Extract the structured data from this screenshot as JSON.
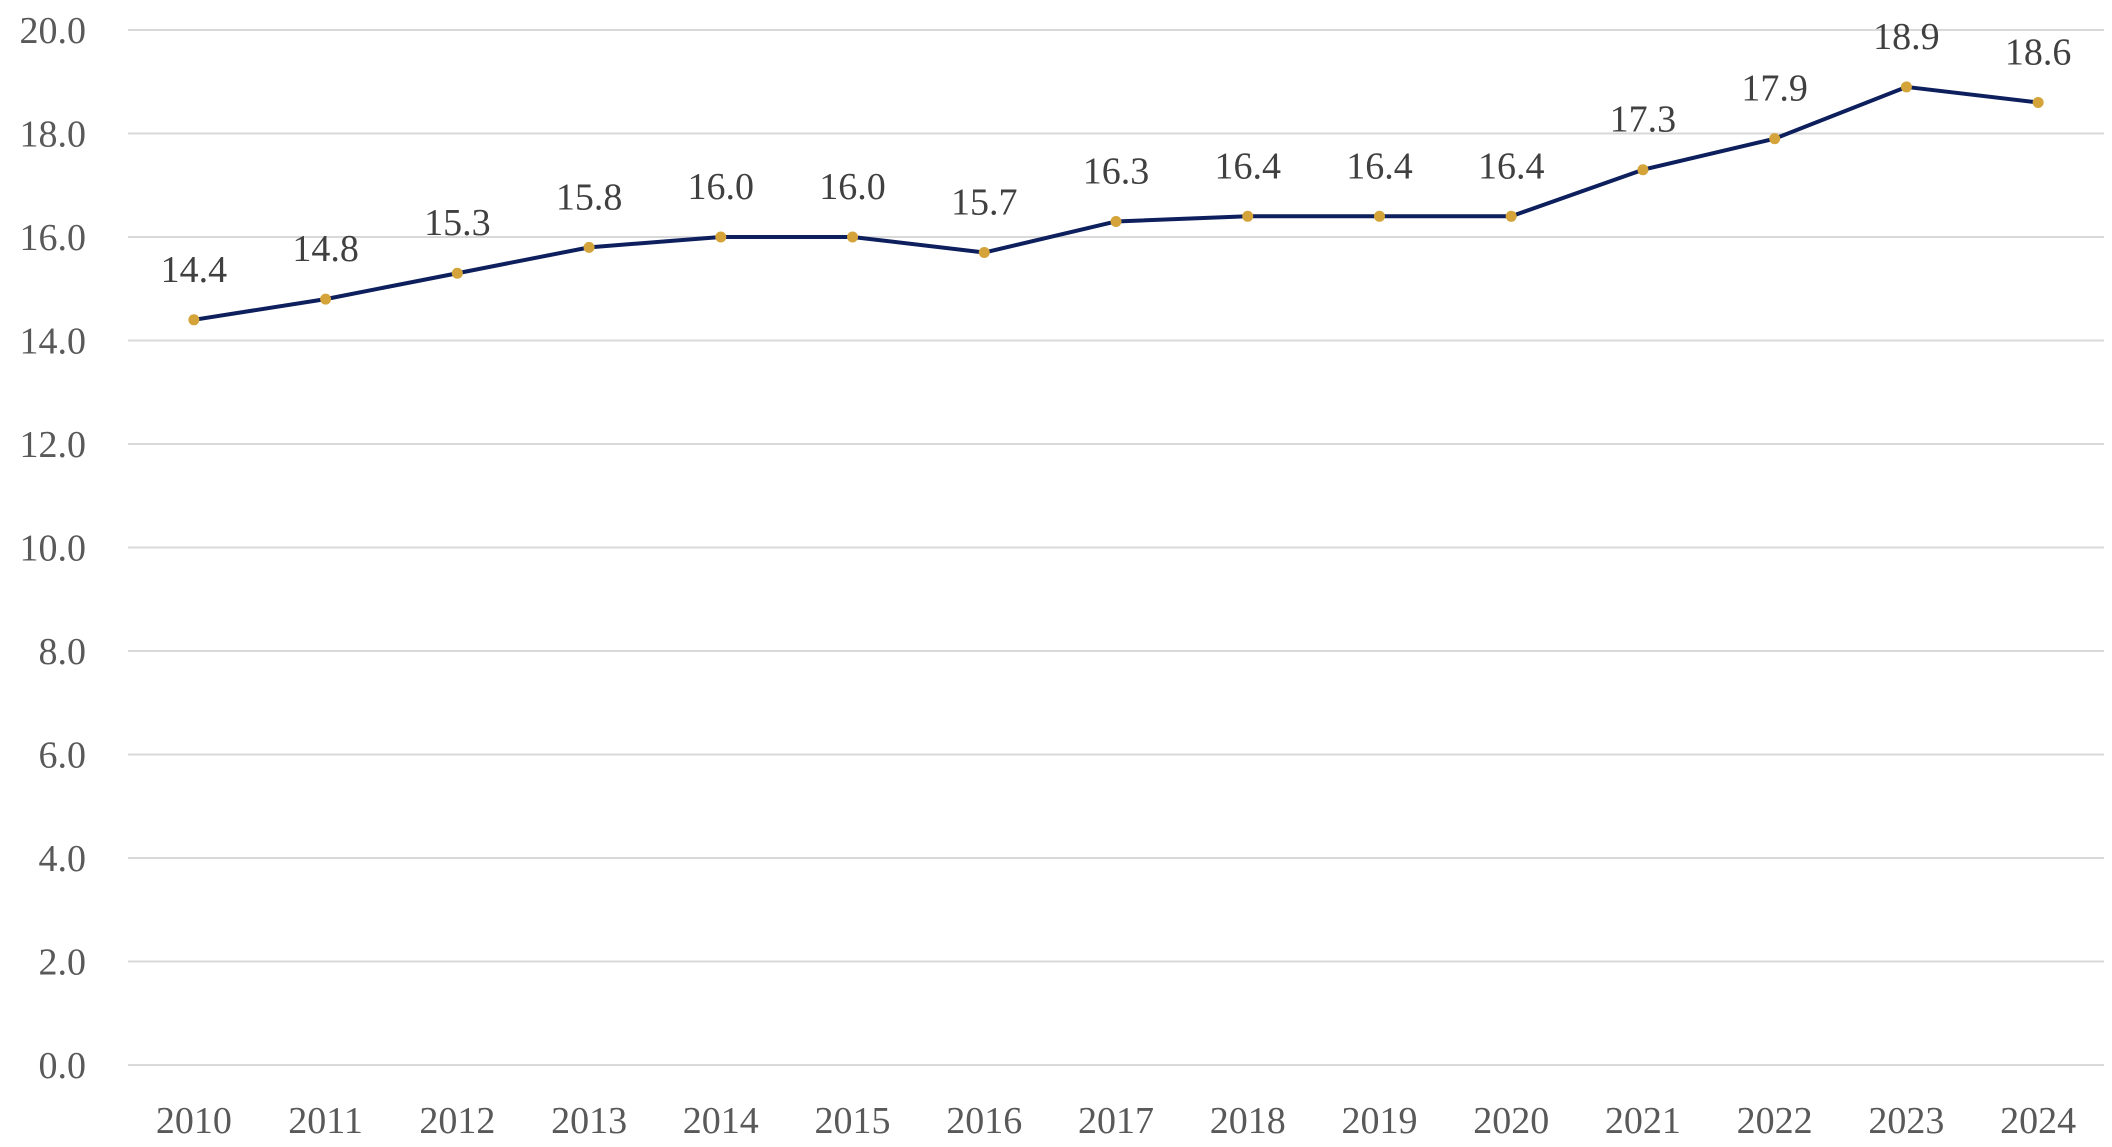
{
  "chart_data": {
    "type": "line",
    "title": "",
    "xlabel": "",
    "ylabel": "",
    "categories": [
      "2010",
      "2011",
      "2012",
      "2013",
      "2014",
      "2015",
      "2016",
      "2017",
      "2018",
      "2019",
      "2020",
      "2021",
      "2022",
      "2023",
      "2024"
    ],
    "series": [
      {
        "values": [
          14.4,
          14.8,
          15.3,
          15.8,
          16.0,
          16.0,
          15.7,
          16.3,
          16.4,
          16.4,
          16.4,
          17.3,
          17.9,
          18.9,
          18.6
        ],
        "labels": [
          "14.4",
          "14.8",
          "15.3",
          "15.8",
          "16.0",
          "16.0",
          "15.7",
          "16.3",
          "16.4",
          "16.4",
          "16.4",
          "17.3",
          "17.9",
          "18.9",
          "18.6"
        ],
        "line_color": "#0d1f5c",
        "marker_color": "#d4a43a"
      }
    ],
    "ylim": [
      0,
      20
    ],
    "y_ticks": [
      "0.0",
      "2.0",
      "4.0",
      "6.0",
      "8.0",
      "10.0",
      "12.0",
      "14.0",
      "16.0",
      "18.0",
      "20.0"
    ],
    "grid": true,
    "legend": "none",
    "colors": {
      "grid": "#d9d9d9",
      "tick_text": "#595959",
      "label_text": "#404040"
    }
  }
}
